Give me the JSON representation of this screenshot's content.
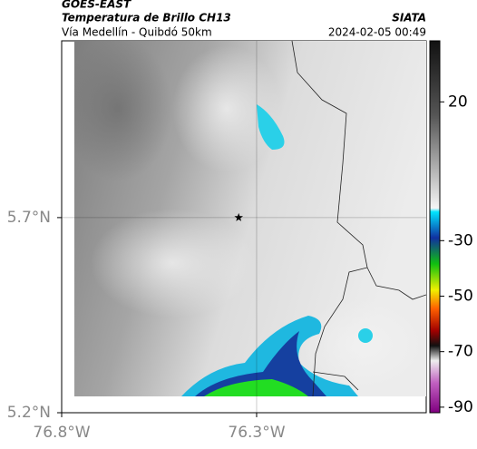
{
  "header": {
    "source": "GOES-EAST",
    "product": "Temperatura de Brillo CH13",
    "agency": "SIATA",
    "route": "Vía Medellín - Quibdó 50km",
    "datetime": "2024-02-05 00:49"
  },
  "map": {
    "xlim": [
      -76.8,
      -75.865
    ],
    "ylim": [
      5.2,
      6.153
    ],
    "xticks": [
      {
        "value": -76.8,
        "label": "76.8°W"
      },
      {
        "value": -76.3,
        "label": "76.3°W"
      }
    ],
    "yticks": [
      {
        "value": 5.2,
        "label": "5.2°N"
      },
      {
        "value": 5.7,
        "label": "5.7°N"
      }
    ],
    "grid": true,
    "marker": {
      "lon": -76.346,
      "lat": 5.7
    }
  },
  "colorbar": {
    "clim": [
      -92,
      42
    ],
    "ticks": [
      20,
      -30,
      -50,
      -70,
      -90
    ]
  }
}
